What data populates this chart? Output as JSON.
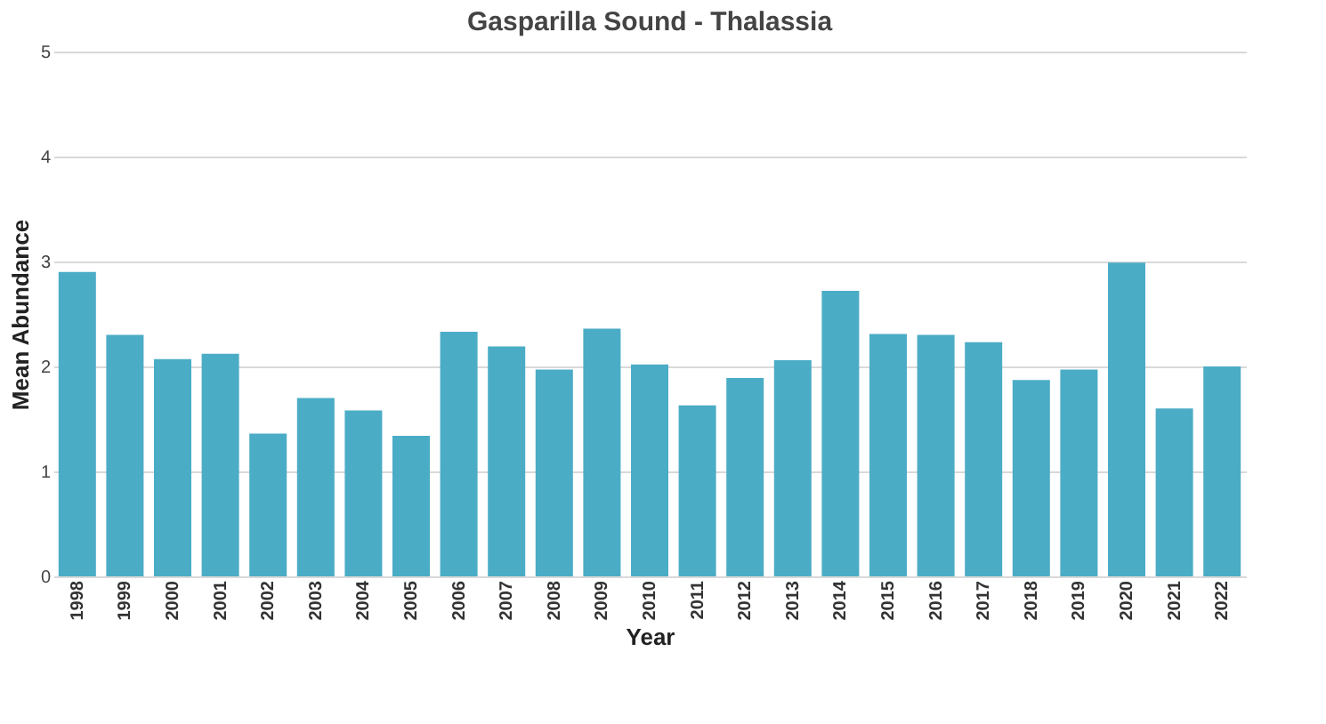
{
  "chart_data": {
    "type": "bar",
    "title": "Gasparilla Sound - Thalassia",
    "xlabel": "Year",
    "ylabel": "Mean Abundance",
    "categories": [
      "1998",
      "1999",
      "2000",
      "2001",
      "2002",
      "2003",
      "2004",
      "2005",
      "2006",
      "2007",
      "2008",
      "2009",
      "2010",
      "2011",
      "2012",
      "2013",
      "2014",
      "2015",
      "2016",
      "2017",
      "2018",
      "2019",
      "2020",
      "2021",
      "2022"
    ],
    "values": [
      2.9,
      2.3,
      2.07,
      2.12,
      1.36,
      1.7,
      1.58,
      1.34,
      2.33,
      2.19,
      1.97,
      2.36,
      2.02,
      1.63,
      1.89,
      2.06,
      2.72,
      2.31,
      2.3,
      2.23,
      1.87,
      1.97,
      2.99,
      1.6,
      2.0
    ],
    "color": "#4bacc6",
    "ylim": [
      0,
      5
    ],
    "yticks": [
      0,
      1,
      2,
      3,
      4,
      5
    ],
    "grid": "y"
  }
}
